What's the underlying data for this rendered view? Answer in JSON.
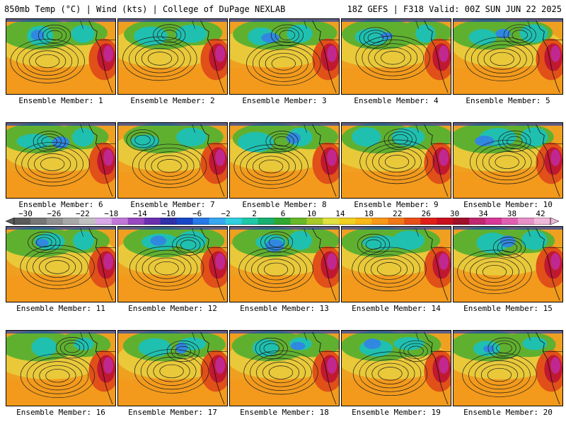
{
  "header": {
    "left_title": "850mb Temp (°C) | Wind (kts) | College of DuPage NEXLAB",
    "right_title": "18Z GEFS | F318 Valid: 00Z SUN JUN 22 2025"
  },
  "colorbar": {
    "labels": [
      "−30",
      "−26",
      "−22",
      "−18",
      "−14",
      "−10",
      "−6",
      "−2",
      "2",
      "6",
      "10",
      "14",
      "18",
      "22",
      "26",
      "30",
      "34",
      "38",
      "42"
    ],
    "colors": [
      "#5a5a5a",
      "#767676",
      "#909090",
      "#a8a8a8",
      "#c0c0c0",
      "#d8a8e8",
      "#c078d8",
      "#9848c0",
      "#6a30b0",
      "#3030a8",
      "#1848c8",
      "#2878e8",
      "#38a8f0",
      "#30d0e0",
      "#20c8a8",
      "#18b070",
      "#30a830",
      "#68b828",
      "#a8c828",
      "#e0e040",
      "#f0d020",
      "#f8b818",
      "#f89818",
      "#f07818",
      "#e85018",
      "#e02018",
      "#c81020",
      "#a01028",
      "#c02870",
      "#d83898",
      "#e060b0",
      "#e890c8",
      "#f0b8d8"
    ],
    "ticks": [
      "-30",
      "-26",
      "-22",
      "-18",
      "-14",
      "-10",
      "-6",
      "-2",
      "2",
      "6",
      "10",
      "14",
      "18",
      "22",
      "26",
      "30",
      "34",
      "38",
      "42"
    ]
  },
  "panels": [
    {
      "label": "Ensemble Member: 1"
    },
    {
      "label": "Ensemble Member: 2"
    },
    {
      "label": "Ensemble Member: 3"
    },
    {
      "label": "Ensemble Member: 4"
    },
    {
      "label": "Ensemble Member: 5"
    },
    {
      "label": "Ensemble Member: 6"
    },
    {
      "label": "Ensemble Member: 7"
    },
    {
      "label": "Ensemble Member: 8"
    },
    {
      "label": "Ensemble Member: 9"
    },
    {
      "label": "Ensemble Member: 10"
    },
    {
      "label": "Ensemble Member: 11"
    },
    {
      "label": "Ensemble Member: 12"
    },
    {
      "label": "Ensemble Member: 13"
    },
    {
      "label": "Ensemble Member: 14"
    },
    {
      "label": "Ensemble Member: 15"
    },
    {
      "label": "Ensemble Member: 16"
    },
    {
      "label": "Ensemble Member: 17"
    },
    {
      "label": "Ensemble Member: 18"
    },
    {
      "label": "Ensemble Member: 19"
    },
    {
      "label": "Ensemble Member: 20"
    }
  ],
  "map_colors": {
    "warm": "#f0a020",
    "hot": "#e05018",
    "very_hot": "#c01830",
    "extreme": "#c02890",
    "mild": "#e8d040",
    "cool": "#60b030",
    "cold": "#20c0b0",
    "colder": "#3088e0",
    "coldest": "#2040b0"
  }
}
